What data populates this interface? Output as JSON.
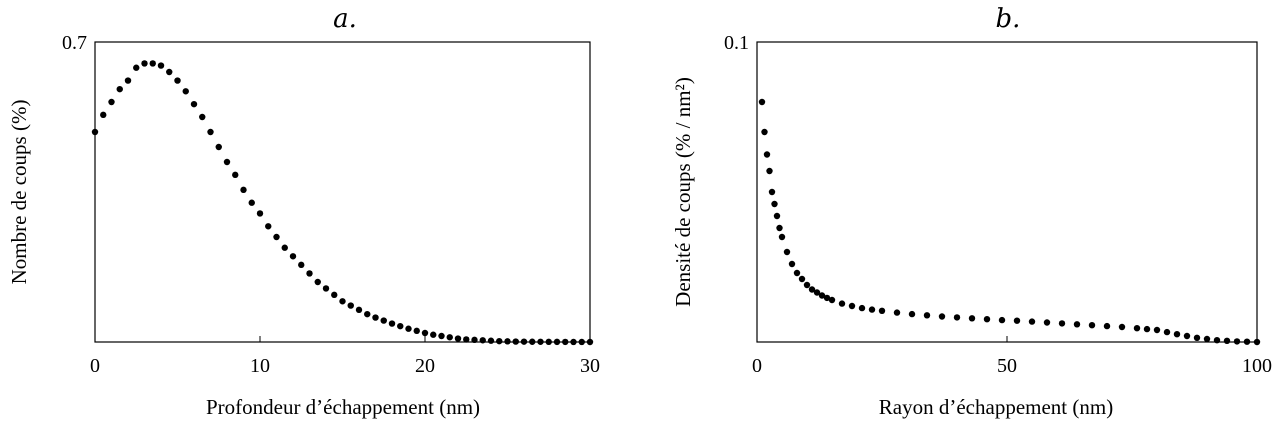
{
  "chart_data": [
    {
      "type": "scatter",
      "title": "a.",
      "xlabel": "Profondeur d’échappement (nm)",
      "ylabel": "Nombre de coups (%)",
      "xlim": [
        0,
        30
      ],
      "ylim": [
        0,
        0.7
      ],
      "xticks": [
        "0",
        "10",
        "20",
        "30"
      ],
      "yticks": [
        "0.7"
      ],
      "grid": false,
      "series": [
        {
          "x": [
            0,
            0.5,
            1,
            1.5,
            2,
            2.5,
            3,
            3.5,
            4,
            4.5,
            5,
            5.5,
            6,
            6.5,
            7,
            7.5,
            8,
            8.5,
            9,
            9.5,
            10,
            10.5,
            11,
            11.5,
            12,
            12.5,
            13,
            13.5,
            14,
            14.5,
            15,
            15.5,
            16,
            16.5,
            17,
            17.5,
            18,
            18.5,
            19,
            19.5,
            20,
            20.5,
            21,
            21.5,
            22,
            22.5,
            23,
            23.5,
            24,
            24.5,
            25,
            25.5,
            26,
            26.5,
            27,
            27.5,
            28,
            28.5,
            29,
            29.5,
            30
          ],
          "y": [
            0.49,
            0.53,
            0.56,
            0.59,
            0.61,
            0.64,
            0.65,
            0.65,
            0.645,
            0.63,
            0.61,
            0.585,
            0.555,
            0.525,
            0.49,
            0.455,
            0.42,
            0.39,
            0.355,
            0.325,
            0.3,
            0.27,
            0.245,
            0.22,
            0.2,
            0.18,
            0.16,
            0.14,
            0.125,
            0.11,
            0.095,
            0.085,
            0.075,
            0.065,
            0.057,
            0.05,
            0.043,
            0.037,
            0.031,
            0.026,
            0.021,
            0.017,
            0.014,
            0.011,
            0.008,
            0.006,
            0.005,
            0.004,
            0.003,
            0.002,
            0.0015,
            0.001,
            0.0008,
            0.0006,
            0.0005,
            0.0004,
            0.0003,
            0.0002,
            0.0001,
            0.0001,
            0.0
          ]
        }
      ]
    },
    {
      "type": "scatter",
      "title": "b.",
      "xlabel": "Rayon d’échappement (nm)",
      "ylabel": "Densité de coups (% / nm²)",
      "xlim": [
        0,
        100
      ],
      "ylim": [
        0,
        0.1
      ],
      "xticks": [
        "0",
        "50",
        "100"
      ],
      "yticks": [
        "0.1"
      ],
      "grid": false,
      "series": [
        {
          "x": [
            1,
            1.5,
            2,
            2.5,
            3,
            3.5,
            4,
            4.5,
            5,
            6,
            7,
            8,
            9,
            10,
            11,
            12,
            13,
            14,
            15,
            17,
            19,
            21,
            23,
            25,
            28,
            31,
            34,
            37,
            40,
            43,
            46,
            49,
            52,
            55,
            58,
            61,
            64,
            67,
            70,
            73,
            76,
            78,
            80,
            82,
            84,
            86,
            88,
            90,
            92,
            94,
            96,
            98,
            100
          ],
          "y": [
            0.08,
            0.07,
            0.0625,
            0.057,
            0.05,
            0.046,
            0.042,
            0.038,
            0.035,
            0.03,
            0.026,
            0.023,
            0.021,
            0.019,
            0.0175,
            0.0165,
            0.0155,
            0.0147,
            0.014,
            0.0128,
            0.012,
            0.0113,
            0.0108,
            0.0104,
            0.0098,
            0.0093,
            0.0089,
            0.0085,
            0.0082,
            0.0079,
            0.0076,
            0.0073,
            0.0071,
            0.0068,
            0.0065,
            0.0062,
            0.0059,
            0.0056,
            0.0053,
            0.005,
            0.0046,
            0.0043,
            0.004,
            0.0033,
            0.0026,
            0.002,
            0.0014,
            0.001,
            0.0006,
            0.0004,
            0.0002,
            0.0001,
            0.0
          ]
        }
      ]
    }
  ]
}
